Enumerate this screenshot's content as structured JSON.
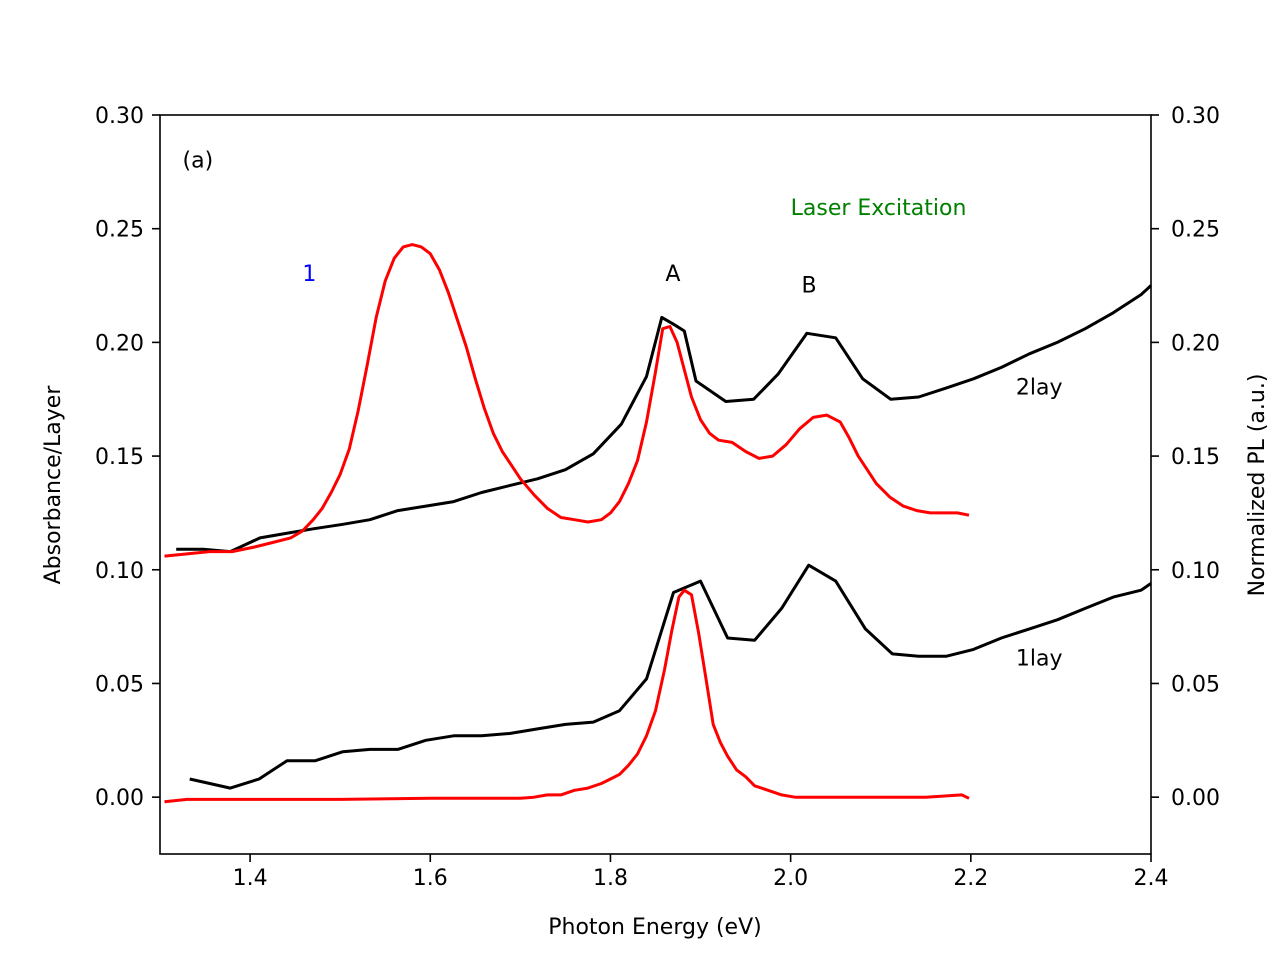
{
  "chart_data": {
    "type": "line",
    "title": "",
    "xlabel": "Photon Energy (eV)",
    "ylabel": "Absorbance/Layer",
    "y2label": "Normalized PL (a.u.)",
    "xlim": [
      1.3,
      2.4
    ],
    "ylim": [
      -0.025,
      0.3
    ],
    "y2lim": [
      -0.025,
      0.3
    ],
    "xticks": [
      "1.4",
      "1.6",
      "1.8",
      "2.0",
      "2.2",
      "2.4"
    ],
    "yticks": [
      "0.00",
      "0.05",
      "0.10",
      "0.15",
      "0.20",
      "0.25",
      "0.30"
    ],
    "grid": false,
    "annotations": [
      {
        "text": "(a)",
        "x": 1.325,
        "y": 0.277,
        "color": "#000000"
      },
      {
        "text": "Laser Excitation",
        "x": 2.0,
        "y": 0.256,
        "color": "#008000"
      },
      {
        "text": "1",
        "x": 1.458,
        "y": 0.227,
        "color": "#0000ff"
      },
      {
        "text": "A",
        "x": 1.861,
        "y": 0.227,
        "color": "#000000"
      },
      {
        "text": "B",
        "x": 2.012,
        "y": 0.222,
        "color": "#000000"
      },
      {
        "text": "2lay",
        "x": 2.25,
        "y": 0.177,
        "color": "#000000"
      },
      {
        "text": "1lay",
        "x": 2.25,
        "y": 0.058,
        "color": "#000000"
      }
    ],
    "series": [
      {
        "color": "#000000",
        "x": [
          1.318,
          1.348,
          1.378,
          1.411,
          1.44,
          1.47,
          1.503,
          1.533,
          1.564,
          1.595,
          1.626,
          1.657,
          1.688,
          1.719,
          1.75,
          1.781,
          1.812,
          1.84,
          1.857,
          1.87,
          1.882,
          1.895,
          1.928,
          1.959,
          1.986,
          2.018,
          2.05,
          2.08,
          2.111,
          2.142,
          2.173,
          2.203,
          2.234,
          2.265,
          2.296,
          2.327,
          2.358,
          2.389,
          2.4
        ],
        "y": [
          0.109,
          0.109,
          0.108,
          0.114,
          0.116,
          0.118,
          0.12,
          0.122,
          0.126,
          0.128,
          0.13,
          0.134,
          0.137,
          0.14,
          0.144,
          0.151,
          0.164,
          0.185,
          0.211,
          0.208,
          0.205,
          0.183,
          0.174,
          0.175,
          0.186,
          0.204,
          0.202,
          0.184,
          0.175,
          0.176,
          0.18,
          0.184,
          0.189,
          0.195,
          0.2,
          0.206,
          0.213,
          0.221,
          0.225
        ]
      },
      {
        "color": "#ff0000",
        "x": [
          1.305,
          1.33,
          1.355,
          1.38,
          1.405,
          1.425,
          1.445,
          1.458,
          1.47,
          1.48,
          1.49,
          1.5,
          1.51,
          1.52,
          1.53,
          1.54,
          1.55,
          1.56,
          1.57,
          1.58,
          1.59,
          1.6,
          1.61,
          1.62,
          1.63,
          1.64,
          1.65,
          1.66,
          1.67,
          1.68,
          1.69,
          1.7,
          1.715,
          1.73,
          1.745,
          1.76,
          1.775,
          1.79,
          1.8,
          1.81,
          1.82,
          1.83,
          1.84,
          1.85,
          1.858,
          1.866,
          1.874,
          1.882,
          1.89,
          1.9,
          1.91,
          1.92,
          1.935,
          1.95,
          1.965,
          1.98,
          1.995,
          2.01,
          2.025,
          2.04,
          2.055,
          2.065,
          2.075,
          2.085,
          2.095,
          2.11,
          2.125,
          2.14,
          2.155,
          2.17,
          2.185,
          2.198
        ],
        "y": [
          0.106,
          0.107,
          0.108,
          0.108,
          0.11,
          0.112,
          0.114,
          0.117,
          0.122,
          0.127,
          0.134,
          0.142,
          0.153,
          0.17,
          0.19,
          0.211,
          0.227,
          0.237,
          0.242,
          0.243,
          0.242,
          0.239,
          0.232,
          0.222,
          0.21,
          0.198,
          0.184,
          0.171,
          0.16,
          0.152,
          0.146,
          0.14,
          0.133,
          0.127,
          0.123,
          0.122,
          0.121,
          0.122,
          0.125,
          0.13,
          0.138,
          0.148,
          0.165,
          0.187,
          0.206,
          0.207,
          0.2,
          0.188,
          0.176,
          0.166,
          0.16,
          0.157,
          0.156,
          0.152,
          0.149,
          0.15,
          0.155,
          0.162,
          0.167,
          0.168,
          0.165,
          0.158,
          0.15,
          0.144,
          0.138,
          0.132,
          0.128,
          0.126,
          0.125,
          0.125,
          0.125,
          0.124
        ]
      },
      {
        "color": "#000000",
        "x": [
          1.333,
          1.378,
          1.41,
          1.441,
          1.472,
          1.503,
          1.533,
          1.564,
          1.595,
          1.626,
          1.657,
          1.688,
          1.719,
          1.75,
          1.781,
          1.81,
          1.84,
          1.87,
          1.9,
          1.93,
          1.96,
          1.99,
          2.02,
          2.05,
          2.083,
          2.113,
          2.142,
          2.173,
          2.203,
          2.234,
          2.265,
          2.296,
          2.327,
          2.358,
          2.389,
          2.4
        ],
        "y": [
          0.008,
          0.004,
          0.008,
          0.016,
          0.016,
          0.02,
          0.021,
          0.021,
          0.025,
          0.027,
          0.027,
          0.028,
          0.03,
          0.032,
          0.033,
          0.038,
          0.052,
          0.09,
          0.095,
          0.07,
          0.069,
          0.083,
          0.102,
          0.095,
          0.074,
          0.063,
          0.062,
          0.062,
          0.065,
          0.07,
          0.074,
          0.078,
          0.083,
          0.088,
          0.091,
          0.094
        ]
      },
      {
        "color": "#ff0000",
        "x": [
          1.305,
          1.33,
          1.4,
          1.5,
          1.6,
          1.7,
          1.715,
          1.73,
          1.745,
          1.76,
          1.775,
          1.79,
          1.8,
          1.81,
          1.82,
          1.83,
          1.84,
          1.85,
          1.86,
          1.868,
          1.876,
          1.882,
          1.89,
          1.898,
          1.906,
          1.914,
          1.922,
          1.93,
          1.94,
          1.95,
          1.96,
          1.975,
          1.99,
          2.005,
          2.05,
          2.1,
          2.15,
          2.19,
          2.198
        ],
        "y": [
          -0.002,
          -0.001,
          -0.001,
          -0.001,
          -0.0005,
          -0.0005,
          0.0,
          0.001,
          0.001,
          0.003,
          0.004,
          0.006,
          0.008,
          0.01,
          0.014,
          0.019,
          0.027,
          0.038,
          0.056,
          0.073,
          0.088,
          0.091,
          0.089,
          0.072,
          0.052,
          0.032,
          0.024,
          0.018,
          0.012,
          0.009,
          0.005,
          0.003,
          0.001,
          0.0,
          0.0,
          0.0,
          0.0,
          0.001,
          -0.0005
        ]
      }
    ]
  }
}
